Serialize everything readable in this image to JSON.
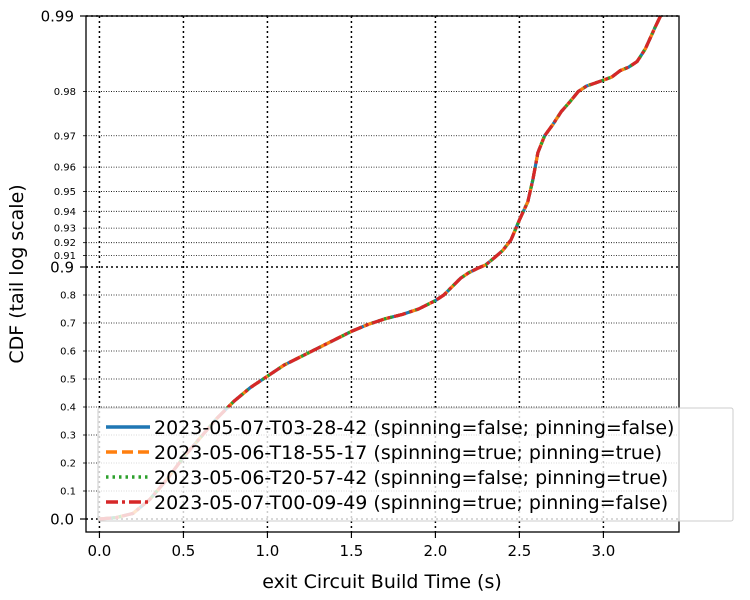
{
  "chart_data": {
    "type": "line",
    "xlabel": "exit Circuit Build Time (s)",
    "ylabel": "CDF (tail log scale)",
    "y_scale": "tail-log",
    "xlim": [
      -0.08,
      3.45
    ],
    "ylim": [
      0.0,
      0.99
    ],
    "grid": true,
    "legend_position": "lower-right",
    "x_ticks": [
      0.0,
      0.5,
      1.0,
      1.5,
      2.0,
      2.5,
      3.0
    ],
    "x_tick_labels": [
      "0.0",
      "0.5",
      "1.0",
      "1.5",
      "2.0",
      "2.5",
      "3.0"
    ],
    "y_major_ticks": [
      {
        "value": 0.0,
        "label": "0.0"
      },
      {
        "value": 0.9,
        "label": "0.9"
      },
      {
        "value": 0.99,
        "label": "0.99"
      }
    ],
    "y_minor_ticks": [
      {
        "value": 0.1,
        "label": "0.1"
      },
      {
        "value": 0.2,
        "label": "0.2"
      },
      {
        "value": 0.3,
        "label": "0.3"
      },
      {
        "value": 0.4,
        "label": "0.4"
      },
      {
        "value": 0.5,
        "label": "0.5"
      },
      {
        "value": 0.6,
        "label": "0.6"
      },
      {
        "value": 0.7,
        "label": "0.7"
      },
      {
        "value": 0.8,
        "label": "0.8"
      },
      {
        "value": 0.91,
        "label": "0.91"
      },
      {
        "value": 0.92,
        "label": "0.92"
      },
      {
        "value": 0.93,
        "label": "0.93"
      },
      {
        "value": 0.94,
        "label": "0.94"
      },
      {
        "value": 0.95,
        "label": "0.95"
      },
      {
        "value": 0.96,
        "label": "0.96"
      },
      {
        "value": 0.97,
        "label": "0.97"
      },
      {
        "value": 0.98,
        "label": "0.98"
      }
    ],
    "curve": {
      "x": [
        0.0,
        0.1,
        0.2,
        0.3,
        0.4,
        0.5,
        0.6,
        0.7,
        0.8,
        0.9,
        1.0,
        1.1,
        1.2,
        1.3,
        1.4,
        1.5,
        1.6,
        1.7,
        1.8,
        1.9,
        2.0,
        2.05,
        2.1,
        2.15,
        2.2,
        2.25,
        2.3,
        2.35,
        2.4,
        2.45,
        2.5,
        2.55,
        2.58,
        2.61,
        2.65,
        2.7,
        2.75,
        2.8,
        2.85,
        2.9,
        2.95,
        3.0,
        3.05,
        3.1,
        3.15,
        3.2,
        3.22,
        3.25,
        3.28,
        3.31,
        3.34
      ],
      "y": [
        0.0,
        0.005,
        0.02,
        0.07,
        0.14,
        0.22,
        0.29,
        0.36,
        0.42,
        0.47,
        0.51,
        0.55,
        0.58,
        0.61,
        0.64,
        0.67,
        0.695,
        0.715,
        0.73,
        0.75,
        0.78,
        0.8,
        0.83,
        0.86,
        0.88,
        0.895,
        0.902,
        0.908,
        0.914,
        0.922,
        0.935,
        0.945,
        0.955,
        0.965,
        0.97,
        0.973,
        0.976,
        0.978,
        0.98,
        0.981,
        0.9815,
        0.982,
        0.9825,
        0.9835,
        0.984,
        0.9848,
        0.9855,
        0.9865,
        0.9878,
        0.989,
        0.99
      ]
    },
    "series": [
      {
        "name": "2023-05-07-T03-28-42 (spinning=false; pinning=false)",
        "color": "#1f77b4",
        "style": "solid"
      },
      {
        "name": "2023-05-06-T18-55-17 (spinning=true; pinning=true)",
        "color": "#ff7f0e",
        "style": "dashed"
      },
      {
        "name": "2023-05-06-T20-57-42 (spinning=false; pinning=true)",
        "color": "#2ca02c",
        "style": "dotted"
      },
      {
        "name": "2023-05-07-T00-09-49 (spinning=true; pinning=false)",
        "color": "#d62728",
        "style": "dashdot"
      }
    ]
  }
}
